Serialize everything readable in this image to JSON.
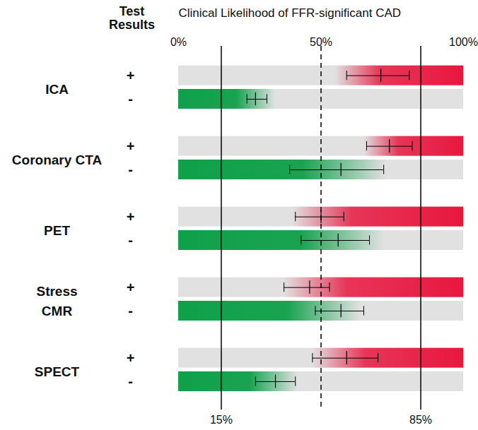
{
  "chart_data": {
    "type": "interval",
    "title": "Clinical Likelihood of FFR-significant CAD",
    "header": "Test\nResults",
    "categories": [
      "ICA",
      "Coronary CTA",
      "PET",
      "Stress\nCMR",
      "SPECT"
    ],
    "xlim": [
      0,
      100
    ],
    "xticks": [
      {
        "value": 0,
        "label": "0%"
      },
      {
        "value": 50,
        "label": "50%"
      },
      {
        "value": 100,
        "label": "100%"
      }
    ],
    "reference_lines": [
      {
        "value": 15,
        "label": "15%",
        "line_style": "solid"
      },
      {
        "value": 50,
        "line_style": "dashed"
      },
      {
        "value": 85,
        "label": "85%",
        "line_style": "solid"
      }
    ],
    "series": [
      {
        "name": "+",
        "color": "#e8173f",
        "values": [
          71,
          74,
          50,
          46,
          59
        ],
        "ci_low": [
          59,
          66,
          41,
          37,
          47
        ],
        "ci_high": [
          81,
          82,
          58,
          53,
          70
        ],
        "shaded_from": [
          55,
          65,
          40,
          37,
          47
        ],
        "shaded_to": [
          100,
          100,
          100,
          100,
          100
        ]
      },
      {
        "name": "-",
        "color": "#0fa04a",
        "values": [
          27,
          57,
          56,
          57,
          34
        ],
        "ci_low": [
          24,
          39,
          43,
          48,
          27
        ],
        "ci_high": [
          31,
          72,
          67,
          65,
          41
        ],
        "shaded_from": [
          0,
          0,
          0,
          0,
          0
        ],
        "shaded_to": [
          34,
          73,
          72,
          64,
          42
        ]
      }
    ]
  }
}
